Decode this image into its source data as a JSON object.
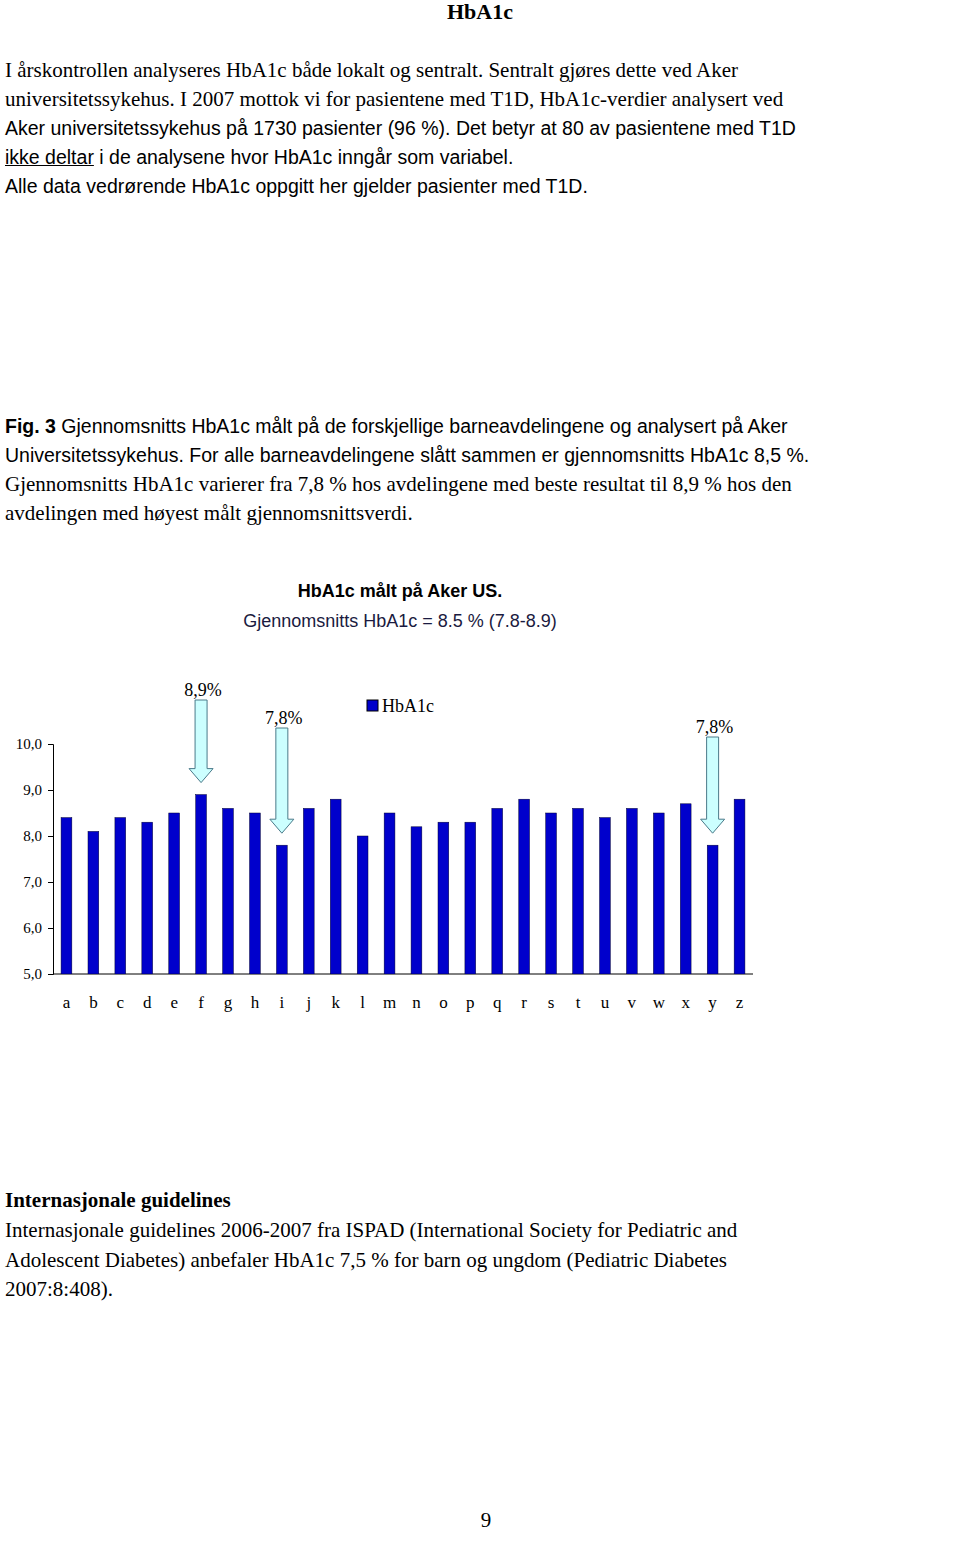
{
  "heading": "HbA1c",
  "intro_lines": [
    "I årskontrollen analyseres HbA1c både lokalt og sentralt. Sentralt gjøres dette ved Aker",
    "universitetssykehus. I 2007 mottok vi for pasientene med T1D, HbA1c-verdier analysert ved",
    "Aker universitetssykehus på 1730 pasienter (96 %). Det betyr at 80 av pasientene med T1D",
    [
      "ikke deltar",
      " i de analysene hvor HbA1c inngår som variabel."
    ],
    "Alle data vedrørende HbA1c oppgitt her gjelder pasienter med T1D."
  ],
  "caption_lines": [
    [
      "Fig. 3",
      " Gjennomsnitts HbA1c målt på de forskjellige barneavdelingene og analysert på Aker"
    ],
    "Universitetssykehus. For alle barneavdelingene slått sammen er gjennomsnitts HbA1c 8,5 %.",
    "Gjennomsnitts HbA1c varierer fra 7,8 % hos avdelingene med beste resultat til 8,9 % hos den",
    "avdelingen med høyest målt gjennomsnittsverdi."
  ],
  "chart_data": {
    "type": "bar",
    "title": "HbA1c målt på Aker US.",
    "subtitle": "Gjennomsnitts HbA1c = 8.5 % (7.8-8.9)",
    "categories": [
      "a",
      "b",
      "c",
      "d",
      "e",
      "f",
      "g",
      "h",
      "i",
      "j",
      "k",
      "l",
      "m",
      "n",
      "o",
      "p",
      "q",
      "r",
      "s",
      "t",
      "u",
      "v",
      "w",
      "x",
      "y",
      "z"
    ],
    "series": [
      {
        "name": "HbA1c",
        "color": "#0000cc",
        "values": [
          8.4,
          8.1,
          8.4,
          8.3,
          8.5,
          8.9,
          8.6,
          8.5,
          7.8,
          8.6,
          8.8,
          8.0,
          8.5,
          8.2,
          8.3,
          8.3,
          8.6,
          8.8,
          8.5,
          8.6,
          8.4,
          8.6,
          8.5,
          8.7,
          7.8,
          8.8
        ]
      }
    ],
    "ylim": [
      5,
      10
    ],
    "yticks": [
      {
        "value": 5,
        "label": "5,0"
      },
      {
        "value": 6,
        "label": "6,0"
      },
      {
        "value": 7,
        "label": "7,0"
      },
      {
        "value": 8,
        "label": "8,0"
      },
      {
        "value": 9,
        "label": "9,0"
      },
      {
        "value": 10,
        "label": "10,0"
      }
    ],
    "grid": false,
    "legend": "top",
    "annotations": [
      {
        "text": "8,9%",
        "category": "f"
      },
      {
        "text": "7,8%",
        "category": "i"
      },
      {
        "text": "7,8%",
        "category": "y"
      }
    ]
  },
  "section_heading": "Internasjonale guidelines",
  "section_lines": [
    "Internasjonale guidelines 2006-2007 fra ISPAD (International Society for Pediatric and",
    "Adolescent Diabetes) anbefaler HbA1c 7,5 % for barn og ungdom (Pediatric Diabetes",
    "2007:8:408)."
  ],
  "page_number": "9"
}
